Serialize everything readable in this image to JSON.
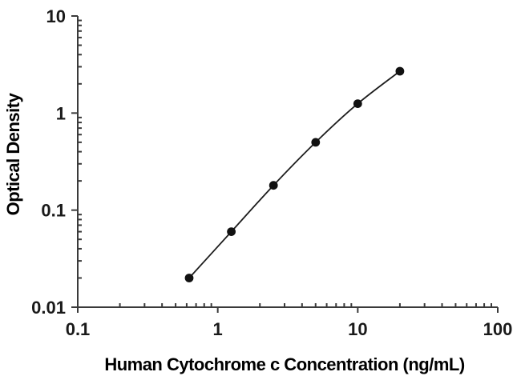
{
  "page": {
    "background": "#ffffff"
  },
  "chart_data": {
    "type": "scatter",
    "title": "",
    "xlabel": "Human Cytochrome c Concentration (ng/mL)",
    "ylabel": "Optical Density",
    "x_scale": "log",
    "y_scale": "log",
    "xlim": [
      0.1,
      100
    ],
    "ylim": [
      0.01,
      10
    ],
    "x_ticks": [
      0.1,
      1,
      10,
      100
    ],
    "x_tick_labels": [
      "0.1",
      "1",
      "10",
      "100"
    ],
    "y_ticks": [
      0.01,
      0.1,
      1,
      10
    ],
    "y_tick_labels": [
      "0.01",
      "0.1",
      "1",
      "10"
    ],
    "grid": false,
    "legend_position": "none",
    "series": [
      {
        "name": "human-cytochrome-c-standard-curve",
        "x": [
          0.625,
          1.25,
          2.5,
          5,
          10,
          20
        ],
        "y": [
          0.02,
          0.06,
          0.18,
          0.5,
          1.25,
          2.7
        ],
        "marker": "filled-circle",
        "line": "smooth-fit"
      }
    ],
    "colors": {
      "axis": "#3a3a3a",
      "text": "#1a1a1a",
      "marker": "#111111",
      "curve": "#1c1c1c"
    }
  }
}
